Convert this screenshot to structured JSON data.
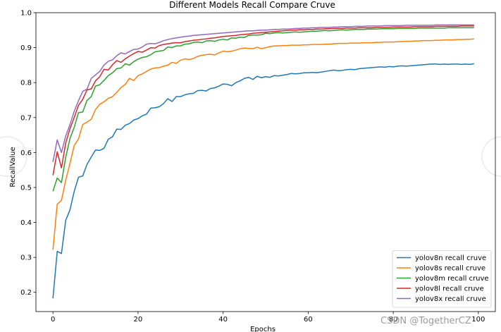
{
  "chart_data": {
    "type": "line",
    "title": "Different Models Recall Compare Cruve",
    "xlabel": "Epochs",
    "ylabel": "RecallValue",
    "xlim": [
      -4,
      104
    ],
    "ylim": [
      0.145,
      1.0
    ],
    "xticks": [
      0,
      20,
      40,
      60,
      80,
      100
    ],
    "yticks": [
      0.2,
      0.3,
      0.4,
      0.5,
      0.6,
      0.7,
      0.8,
      0.9,
      1.0
    ],
    "grid": false,
    "legend_position": "lower-right",
    "x": [
      0,
      1,
      2,
      3,
      4,
      5,
      6,
      7,
      8,
      9,
      10,
      11,
      12,
      13,
      14,
      15,
      16,
      17,
      18,
      19,
      20,
      21,
      22,
      23,
      24,
      25,
      26,
      27,
      28,
      29,
      30,
      31,
      32,
      33,
      34,
      35,
      36,
      37,
      38,
      39,
      40,
      41,
      42,
      43,
      44,
      45,
      46,
      47,
      48,
      49,
      50,
      51,
      52,
      53,
      54,
      55,
      56,
      57,
      58,
      59,
      60,
      61,
      62,
      63,
      64,
      65,
      66,
      67,
      68,
      69,
      70,
      71,
      72,
      73,
      74,
      75,
      76,
      77,
      78,
      79,
      80,
      81,
      82,
      83,
      84,
      85,
      86,
      87,
      88,
      89,
      90,
      91,
      92,
      93,
      94,
      95,
      96,
      97,
      98,
      99
    ],
    "series": [
      {
        "name": "yolov8n recall cruve",
        "color": "#1f77b4",
        "values": [
          0.183,
          0.317,
          0.311,
          0.406,
          0.436,
          0.489,
          0.529,
          0.533,
          0.566,
          0.587,
          0.607,
          0.606,
          0.612,
          0.638,
          0.645,
          0.667,
          0.666,
          0.678,
          0.683,
          0.693,
          0.697,
          0.705,
          0.71,
          0.727,
          0.728,
          0.731,
          0.74,
          0.754,
          0.746,
          0.76,
          0.76,
          0.765,
          0.768,
          0.769,
          0.777,
          0.778,
          0.776,
          0.783,
          0.785,
          0.79,
          0.796,
          0.795,
          0.791,
          0.8,
          0.805,
          0.812,
          0.815,
          0.809,
          0.818,
          0.814,
          0.817,
          0.815,
          0.82,
          0.819,
          0.821,
          0.823,
          0.826,
          0.825,
          0.826,
          0.828,
          0.828,
          0.829,
          0.828,
          0.83,
          0.832,
          0.834,
          0.836,
          0.834,
          0.835,
          0.837,
          0.838,
          0.837,
          0.84,
          0.841,
          0.842,
          0.843,
          0.844,
          0.845,
          0.844,
          0.846,
          0.845,
          0.847,
          0.848,
          0.847,
          0.848,
          0.849,
          0.85,
          0.851,
          0.852,
          0.853,
          0.853,
          0.852,
          0.853,
          0.852,
          0.853,
          0.853,
          0.852,
          0.853,
          0.852,
          0.854
        ]
      },
      {
        "name": "yolov8s recall cruve",
        "color": "#ff7f0e",
        "values": [
          0.322,
          0.452,
          0.463,
          0.521,
          0.569,
          0.62,
          0.639,
          0.68,
          0.687,
          0.695,
          0.723,
          0.738,
          0.745,
          0.755,
          0.76,
          0.772,
          0.786,
          0.795,
          0.812,
          0.806,
          0.82,
          0.825,
          0.832,
          0.839,
          0.842,
          0.843,
          0.847,
          0.85,
          0.858,
          0.855,
          0.864,
          0.868,
          0.866,
          0.869,
          0.875,
          0.878,
          0.88,
          0.881,
          0.879,
          0.885,
          0.89,
          0.888,
          0.89,
          0.893,
          0.897,
          0.899,
          0.898,
          0.897,
          0.901,
          0.897,
          0.9,
          0.903,
          0.905,
          0.905,
          0.906,
          0.906,
          0.907,
          0.907,
          0.907,
          0.908,
          0.908,
          0.909,
          0.909,
          0.909,
          0.91,
          0.91,
          0.911,
          0.912,
          0.912,
          0.912,
          0.913,
          0.913,
          0.913,
          0.914,
          0.914,
          0.914,
          0.915,
          0.915,
          0.916,
          0.916,
          0.916,
          0.917,
          0.917,
          0.918,
          0.918,
          0.919,
          0.919,
          0.92,
          0.92,
          0.92,
          0.921,
          0.921,
          0.922,
          0.922,
          0.922,
          0.923,
          0.923,
          0.924,
          0.924,
          0.925
        ]
      },
      {
        "name": "yolov8m recall cruve",
        "color": "#2ca02c",
        "values": [
          0.489,
          0.527,
          0.514,
          0.586,
          0.64,
          0.672,
          0.714,
          0.716,
          0.749,
          0.76,
          0.79,
          0.794,
          0.806,
          0.82,
          0.828,
          0.84,
          0.842,
          0.854,
          0.85,
          0.86,
          0.867,
          0.872,
          0.874,
          0.88,
          0.888,
          0.89,
          0.892,
          0.902,
          0.9,
          0.905,
          0.905,
          0.91,
          0.911,
          0.915,
          0.916,
          0.914,
          0.919,
          0.92,
          0.918,
          0.922,
          0.924,
          0.922,
          0.928,
          0.927,
          0.93,
          0.929,
          0.935,
          0.936,
          0.936,
          0.937,
          0.941,
          0.94,
          0.942,
          0.943,
          0.942,
          0.943,
          0.944,
          0.945,
          0.944,
          0.945,
          0.946,
          0.947,
          0.947,
          0.948,
          0.949,
          0.948,
          0.949,
          0.95,
          0.951,
          0.95,
          0.951,
          0.952,
          0.952,
          0.952,
          0.953,
          0.953,
          0.953,
          0.954,
          0.954,
          0.954,
          0.954,
          0.955,
          0.955,
          0.955,
          0.955,
          0.955,
          0.956,
          0.956,
          0.956,
          0.956,
          0.956,
          0.956,
          0.956,
          0.957,
          0.957,
          0.957,
          0.957,
          0.957,
          0.957,
          0.957
        ]
      },
      {
        "name": "yolov8l recall cruve",
        "color": "#d62728",
        "values": [
          0.535,
          0.602,
          0.556,
          0.627,
          0.668,
          0.7,
          0.735,
          0.752,
          0.779,
          0.782,
          0.805,
          0.817,
          0.838,
          0.836,
          0.851,
          0.863,
          0.858,
          0.868,
          0.876,
          0.883,
          0.889,
          0.887,
          0.893,
          0.9,
          0.899,
          0.906,
          0.909,
          0.911,
          0.913,
          0.914,
          0.914,
          0.917,
          0.919,
          0.921,
          0.922,
          0.924,
          0.925,
          0.927,
          0.928,
          0.93,
          0.932,
          0.933,
          0.934,
          0.935,
          0.937,
          0.938,
          0.939,
          0.941,
          0.942,
          0.943,
          0.944,
          0.945,
          0.946,
          0.947,
          0.948,
          0.949,
          0.95,
          0.95,
          0.951,
          0.951,
          0.952,
          0.952,
          0.953,
          0.953,
          0.954,
          0.954,
          0.955,
          0.955,
          0.955,
          0.956,
          0.956,
          0.956,
          0.957,
          0.957,
          0.957,
          0.957,
          0.958,
          0.958,
          0.958,
          0.958,
          0.959,
          0.959,
          0.959,
          0.959,
          0.959,
          0.96,
          0.96,
          0.96,
          0.96,
          0.96,
          0.961,
          0.961,
          0.961,
          0.961,
          0.961,
          0.961,
          0.962,
          0.962,
          0.962,
          0.962
        ]
      },
      {
        "name": "yolov8x recall cruve",
        "color": "#9467bd",
        "values": [
          0.573,
          0.636,
          0.6,
          0.647,
          0.68,
          0.718,
          0.748,
          0.775,
          0.781,
          0.812,
          0.822,
          0.832,
          0.85,
          0.861,
          0.865,
          0.877,
          0.885,
          0.882,
          0.889,
          0.895,
          0.896,
          0.902,
          0.91,
          0.912,
          0.911,
          0.915,
          0.92,
          0.923,
          0.926,
          0.928,
          0.93,
          0.932,
          0.933,
          0.935,
          0.936,
          0.937,
          0.938,
          0.939,
          0.94,
          0.941,
          0.942,
          0.943,
          0.944,
          0.945,
          0.946,
          0.947,
          0.948,
          0.948,
          0.949,
          0.95,
          0.95,
          0.951,
          0.952,
          0.952,
          0.953,
          0.953,
          0.954,
          0.955,
          0.955,
          0.956,
          0.956,
          0.957,
          0.957,
          0.958,
          0.958,
          0.958,
          0.959,
          0.959,
          0.96,
          0.96,
          0.96,
          0.961,
          0.961,
          0.961,
          0.962,
          0.962,
          0.962,
          0.962,
          0.963,
          0.963,
          0.963,
          0.963,
          0.963,
          0.964,
          0.964,
          0.964,
          0.964,
          0.964,
          0.964,
          0.964,
          0.965,
          0.965,
          0.965,
          0.965,
          0.965,
          0.965,
          0.965,
          0.965,
          0.965,
          0.965
        ]
      }
    ]
  },
  "watermark": {
    "text": "CSDN @TogetherCZ"
  }
}
